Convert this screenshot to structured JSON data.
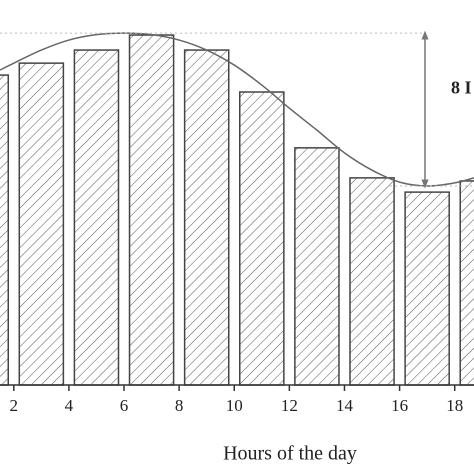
{
  "chart_data": {
    "type": "bar",
    "xlabel": "Hours of the day",
    "annotation": "8 I",
    "x": [
      1,
      3,
      5,
      7,
      9,
      11,
      13,
      15,
      17,
      19
    ],
    "values": [
      80.5,
      83.6,
      87,
      90.9,
      87,
      76.1,
      61.6,
      53.8,
      50.1,
      53
    ],
    "line": {
      "x": [
        1.5,
        2,
        3,
        4,
        5,
        6,
        7,
        8,
        9,
        10,
        11,
        12,
        13,
        14,
        15,
        16,
        17,
        18,
        18.7
      ],
      "values": [
        81.8,
        83.6,
        87,
        89.6,
        91,
        91.4,
        91,
        89.6,
        87,
        83.1,
        77.9,
        71.9,
        66.2,
        60.3,
        55.8,
        52.7,
        51.7,
        52.5,
        53.8
      ],
      "color": "#666666"
    },
    "color": "#444444",
    "xlim": [
      1.5,
      18.7
    ],
    "ylim": [
      0,
      100
    ],
    "xticks": [
      2,
      4,
      6,
      8,
      10,
      12,
      14,
      16,
      18
    ]
  }
}
